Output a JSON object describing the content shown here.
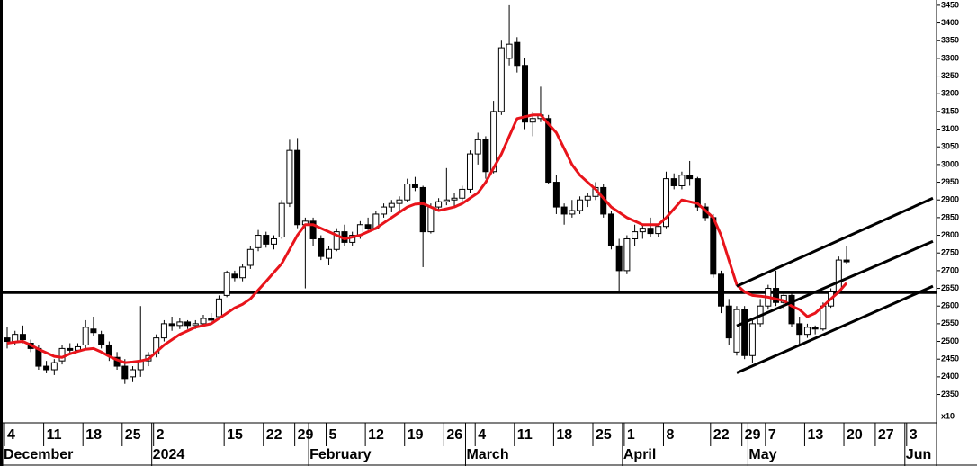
{
  "chart_data": {
    "type": "candlestick",
    "multiplier_label": "x10",
    "categories": [
      "4",
      null,
      null,
      null,
      null,
      "11",
      null,
      null,
      null,
      null,
      "18",
      null,
      null,
      null,
      null,
      "25",
      null,
      null,
      null,
      "2",
      null,
      null,
      null,
      null,
      null,
      null,
      null,
      null,
      "15",
      null,
      null,
      null,
      null,
      "22",
      null,
      null,
      null,
      "29",
      null,
      null,
      null,
      "5",
      null,
      null,
      null,
      null,
      "12",
      null,
      null,
      null,
      null,
      "19",
      null,
      null,
      null,
      null,
      "26",
      null,
      null,
      null,
      "4",
      null,
      null,
      null,
      null,
      "11",
      null,
      null,
      null,
      null,
      "18",
      null,
      null,
      null,
      null,
      "25",
      null,
      null,
      null,
      "1",
      null,
      null,
      null,
      null,
      "8",
      null,
      null,
      null,
      null,
      null,
      "22",
      null,
      null,
      null,
      "29",
      null,
      null,
      "7",
      null,
      null,
      null,
      null,
      "13",
      null,
      null,
      null,
      null,
      "20",
      null,
      null,
      null,
      "27",
      null,
      null,
      null,
      "3",
      null,
      null,
      null
    ],
    "month_labels": [
      "December",
      null,
      null,
      null,
      null,
      null,
      null,
      null,
      null,
      null,
      null,
      null,
      null,
      null,
      null,
      null,
      null,
      null,
      null,
      "2024",
      null,
      null,
      null,
      null,
      null,
      null,
      null,
      null,
      null,
      null,
      null,
      null,
      null,
      null,
      null,
      null,
      null,
      null,
      null,
      "February",
      null,
      null,
      null,
      null,
      null,
      null,
      null,
      null,
      null,
      null,
      null,
      null,
      null,
      null,
      null,
      null,
      null,
      null,
      null,
      "March",
      null,
      null,
      null,
      null,
      null,
      null,
      null,
      null,
      null,
      null,
      null,
      null,
      null,
      null,
      null,
      null,
      null,
      null,
      null,
      "April",
      null,
      null,
      null,
      null,
      null,
      null,
      null,
      null,
      null,
      null,
      null,
      null,
      null,
      null,
      null,
      "May",
      null,
      null,
      null,
      null,
      null,
      null,
      null,
      null,
      null,
      null,
      null,
      null,
      null,
      null,
      null,
      null,
      null,
      null,
      null,
      "Jun",
      null,
      null,
      null
    ],
    "open": [
      2510,
      2500,
      2520,
      2495,
      2480,
      2430,
      2420,
      2445,
      2480,
      2475,
      2490,
      2535,
      2520,
      2490,
      2455,
      2430,
      2400,
      2420,
      2445,
      2465,
      2510,
      2550,
      2545,
      2555,
      2545,
      2550,
      2565,
      2570,
      2630,
      2690,
      2680,
      2715,
      2765,
      2800,
      2775,
      2795,
      2890,
      3040,
      2830,
      2840,
      2790,
      2735,
      2760,
      2810,
      2780,
      2800,
      2830,
      2820,
      2860,
      2880,
      2890,
      2900,
      2945,
      2935,
      2810,
      2880,
      2895,
      2900,
      2905,
      2930,
      3030,
      3070,
      2980,
      3150,
      3300,
      3345,
      3280,
      3120,
      3130,
      3130,
      2950,
      2880,
      2860,
      2870,
      2900,
      2910,
      2935,
      2860,
      2770,
      2700,
      2790,
      2810,
      2820,
      2805,
      2825,
      2960,
      2940,
      2970,
      2960,
      2880,
      2850,
      2690,
      2600,
      2470,
      2590,
      2460,
      2550,
      2600,
      2650,
      2610,
      2630,
      2550,
      2520,
      2540,
      2535,
      2600,
      2640,
      2730,
      null,
      null,
      null,
      null,
      null,
      null,
      null,
      null,
      null,
      null,
      null
    ],
    "high": [
      2540,
      2530,
      2545,
      2505,
      2490,
      2445,
      2450,
      2490,
      2495,
      2495,
      2560,
      2570,
      2530,
      2500,
      2470,
      2450,
      2430,
      2600,
      2470,
      2520,
      2560,
      2570,
      2565,
      2560,
      2560,
      2575,
      2580,
      2630,
      2700,
      2700,
      2720,
      2770,
      2815,
      2810,
      2800,
      2900,
      3070,
      3075,
      2850,
      2850,
      2800,
      2770,
      2820,
      2830,
      2810,
      2840,
      2850,
      2870,
      2890,
      2900,
      2910,
      2960,
      2965,
      2940,
      2890,
      2905,
      2990,
      2920,
      2940,
      3040,
      3090,
      3080,
      3180,
      3350,
      3450,
      3360,
      3300,
      3150,
      3220,
      3140,
      2970,
      2890,
      2900,
      2910,
      2920,
      2950,
      2945,
      2870,
      2790,
      2800,
      2830,
      2830,
      2850,
      2830,
      2980,
      2975,
      2980,
      3010,
      2965,
      2890,
      2860,
      2700,
      2620,
      2600,
      2600,
      2560,
      2620,
      2660,
      2700,
      2640,
      2640,
      2570,
      2550,
      2545,
      2610,
      2650,
      2740,
      2770,
      null,
      null,
      null,
      null,
      null,
      null,
      null,
      null,
      null,
      null,
      null
    ],
    "low": [
      2480,
      2490,
      2495,
      2470,
      2420,
      2410,
      2405,
      2435,
      2465,
      2470,
      2480,
      2515,
      2480,
      2445,
      2420,
      2380,
      2385,
      2400,
      2430,
      2455,
      2500,
      2530,
      2535,
      2535,
      2535,
      2540,
      2550,
      2565,
      2625,
      2670,
      2670,
      2705,
      2755,
      2765,
      2760,
      2790,
      2880,
      2820,
      2650,
      2770,
      2730,
      2715,
      2755,
      2770,
      2770,
      2790,
      2815,
      2815,
      2850,
      2865,
      2870,
      2895,
      2925,
      2710,
      2805,
      2870,
      2885,
      2880,
      2895,
      2920,
      3000,
      2960,
      2975,
      3140,
      3280,
      3260,
      3100,
      3080,
      3120,
      2945,
      2860,
      2830,
      2850,
      2860,
      2880,
      2900,
      2850,
      2760,
      2640,
      2690,
      2770,
      2790,
      2795,
      2795,
      2820,
      2930,
      2930,
      2940,
      2870,
      2840,
      2680,
      2580,
      2490,
      2460,
      2450,
      2440,
      2540,
      2590,
      2600,
      2590,
      2540,
      2490,
      2510,
      2520,
      2530,
      2595,
      2635,
      2720,
      null,
      null,
      null,
      null,
      null,
      null,
      null,
      null,
      null,
      null,
      null
    ],
    "close": [
      2500,
      2520,
      2505,
      2480,
      2430,
      2420,
      2440,
      2480,
      2475,
      2485,
      2540,
      2525,
      2490,
      2460,
      2430,
      2395,
      2420,
      2445,
      2460,
      2510,
      2550,
      2545,
      2555,
      2545,
      2550,
      2565,
      2560,
      2620,
      2695,
      2680,
      2710,
      2760,
      2800,
      2775,
      2790,
      2890,
      3040,
      2830,
      2840,
      2790,
      2740,
      2760,
      2810,
      2780,
      2800,
      2830,
      2820,
      2860,
      2880,
      2890,
      2900,
      2945,
      2935,
      2810,
      2880,
      2895,
      2900,
      2905,
      2930,
      3030,
      3070,
      2980,
      3150,
      3330,
      3340,
      3280,
      3120,
      3130,
      3140,
      2950,
      2880,
      2860,
      2870,
      2900,
      2910,
      2935,
      2860,
      2770,
      2700,
      2790,
      2810,
      2820,
      2805,
      2825,
      2960,
      2940,
      2970,
      2960,
      2880,
      2850,
      2690,
      2600,
      2510,
      2590,
      2460,
      2550,
      2600,
      2650,
      2610,
      2630,
      2550,
      2520,
      2540,
      2535,
      2600,
      2640,
      2730,
      2725,
      null,
      null,
      null,
      null,
      null,
      null,
      null,
      null,
      null,
      null,
      null
    ],
    "up_color": "#ffffff",
    "down_color": "#000000",
    "moving_average": {
      "color": "#e8141b",
      "values": [
        2495,
        2498,
        2500,
        2490,
        2478,
        2468,
        2458,
        2455,
        2465,
        2472,
        2478,
        2480,
        2470,
        2458,
        2448,
        2440,
        2442,
        2445,
        2450,
        2470,
        2490,
        2505,
        2520,
        2530,
        2540,
        2545,
        2550,
        2565,
        2580,
        2595,
        2605,
        2620,
        2645,
        2670,
        2695,
        2720,
        2760,
        2800,
        2830,
        2830,
        2820,
        2810,
        2800,
        2790,
        2795,
        2800,
        2810,
        2820,
        2835,
        2850,
        2865,
        2880,
        2888,
        2890,
        2880,
        2870,
        2875,
        2880,
        2890,
        2905,
        2920,
        2950,
        2990,
        3030,
        3080,
        3130,
        3135,
        3140,
        3140,
        3115,
        3090,
        3045,
        3000,
        2970,
        2950,
        2930,
        2905,
        2880,
        2865,
        2850,
        2840,
        2830,
        2830,
        2830,
        2850,
        2875,
        2900,
        2895,
        2890,
        2870,
        2850,
        2800,
        2730,
        2660,
        2640,
        2630,
        2628,
        2625,
        2620,
        2615,
        2600,
        2590,
        2570,
        2580,
        2600,
        2620,
        2640,
        2665,
        null,
        null,
        null,
        null,
        null,
        null,
        null,
        null,
        null,
        null,
        null
      ]
    },
    "support_line": 2638,
    "channel_lines": [
      {
        "x": [
          93,
          118
        ],
        "y": [
          2656,
          2905
        ]
      },
      {
        "x": [
          93,
          118
        ],
        "y": [
          2544,
          2783
        ]
      },
      {
        "x": [
          93,
          118
        ],
        "y": [
          2411,
          2656
        ]
      }
    ],
    "ylim": [
      2270,
      3465
    ],
    "yticks": [
      2350,
      2400,
      2450,
      2500,
      2550,
      2600,
      2650,
      2700,
      2750,
      2800,
      2850,
      2900,
      2950,
      3000,
      3050,
      3100,
      3150,
      3200,
      3250,
      3300,
      3350,
      3400,
      3450
    ]
  }
}
